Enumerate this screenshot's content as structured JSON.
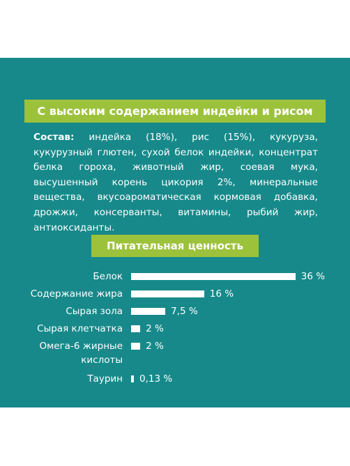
{
  "header": {
    "title": "С высоким содержанием индейки и рисом"
  },
  "composition": {
    "label": "Состав:",
    "text": "индейка (18%), рис (15%), кукуруза, кукурузный глютен, сухой белок индейки, концентрат белка гороха, животный жир, соевая мука, высушенный корень цикория 2%, минеральные вещества, вкусоароматическая кормовая добавка, дрожжи, консерванты, витамины, рыбий жир, антиоксиданты."
  },
  "chart_data": {
    "type": "bar",
    "orientation": "horizontal",
    "title": "Питательная ценность",
    "color": "#ffffff",
    "categories": [
      "Белок",
      "Содержание жира",
      "Сырая зола",
      "Сырая клетчатка",
      "Омега-6 жирные кислоты",
      "Таурин"
    ],
    "values": [
      36,
      16,
      7.5,
      2,
      2,
      0.13
    ],
    "value_labels": [
      "36 %",
      "16 %",
      "7,5 %",
      "2 %",
      "2 %",
      "0,13 %"
    ]
  }
}
